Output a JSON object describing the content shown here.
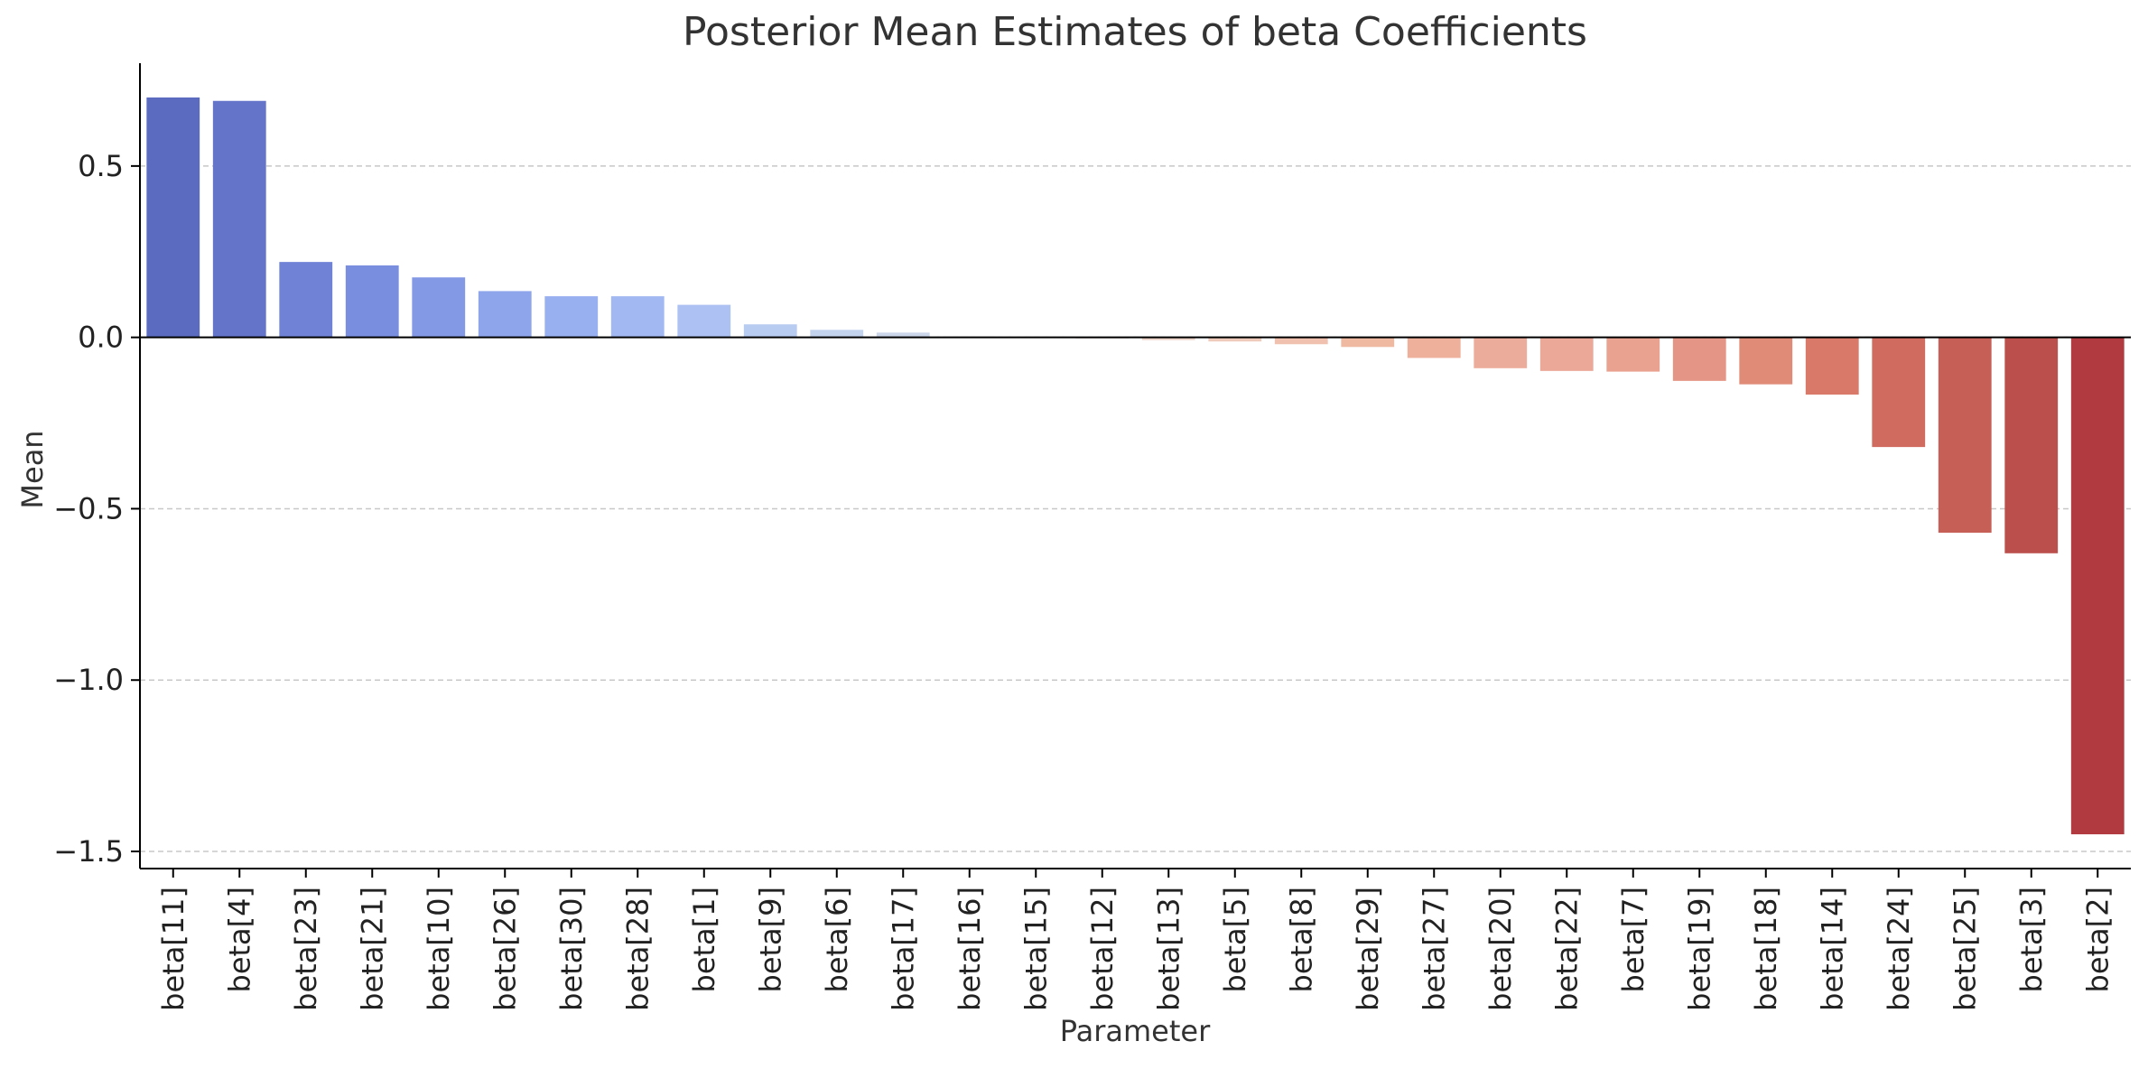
{
  "chart_data": {
    "type": "bar",
    "title": "Posterior Mean Estimates of beta Coefficients",
    "xlabel": "Parameter",
    "ylabel": "Mean",
    "ylim": [
      -1.55,
      0.8
    ],
    "yticks": [
      0.5,
      0.0,
      -0.5,
      -1.0,
      -1.5
    ],
    "ytick_labels": [
      "0.5",
      "0.0",
      "−0.5",
      "−1.0",
      "−1.5"
    ],
    "grid": "horizontal dashed",
    "legend": "none",
    "palette": "coolwarm",
    "categories": [
      "beta[11]",
      "beta[4]",
      "beta[23]",
      "beta[21]",
      "beta[10]",
      "beta[26]",
      "beta[30]",
      "beta[28]",
      "beta[1]",
      "beta[9]",
      "beta[6]",
      "beta[17]",
      "beta[16]",
      "beta[15]",
      "beta[12]",
      "beta[13]",
      "beta[5]",
      "beta[8]",
      "beta[29]",
      "beta[27]",
      "beta[20]",
      "beta[22]",
      "beta[7]",
      "beta[19]",
      "beta[18]",
      "beta[14]",
      "beta[24]",
      "beta[25]",
      "beta[3]",
      "beta[2]"
    ],
    "values": [
      0.7,
      0.69,
      0.22,
      0.21,
      0.175,
      0.135,
      0.12,
      0.12,
      0.095,
      0.038,
      0.022,
      0.014,
      0.002,
      0.001,
      -0.003,
      -0.008,
      -0.012,
      -0.02,
      -0.028,
      -0.06,
      -0.09,
      -0.098,
      -0.1,
      -0.127,
      -0.137,
      -0.167,
      -0.32,
      -0.57,
      -0.63,
      -1.45
    ],
    "colors": [
      "#5a6bc0",
      "#6474c9",
      "#6f82d6",
      "#7a8ee0",
      "#8399e6",
      "#8ea5ec",
      "#98aff0",
      "#a2b8f2",
      "#adc2f3",
      "#b8cbf1",
      "#c3d3ee",
      "#ccd6ea",
      "#d6dae3",
      "#dfdcdc",
      "#e6d8d2",
      "#ecd3c8",
      "#efcbbb",
      "#f0c1ae",
      "#efb8a1",
      "#eeb09a",
      "#ecac9b",
      "#eba798",
      "#e9a290",
      "#e49585",
      "#df8b78",
      "#d8796a",
      "#d06c5f",
      "#c65f55",
      "#bb4f4c",
      "#b03a40"
    ]
  }
}
